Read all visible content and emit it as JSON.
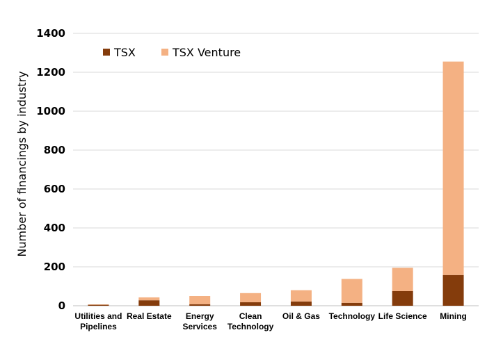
{
  "chart_data": {
    "type": "bar",
    "stacked": true,
    "title": "",
    "xlabel": "",
    "ylabel": "Number of financings by industry",
    "ylim": [
      0,
      1400
    ],
    "yticks": [
      0,
      200,
      400,
      600,
      800,
      1000,
      1200,
      1400
    ],
    "grid": true,
    "legend_position": "top-left",
    "categories": [
      [
        "Utilities and",
        "Pipelines"
      ],
      [
        "Real Estate"
      ],
      [
        "Energy",
        "Services"
      ],
      [
        "Clean",
        "Technology"
      ],
      [
        "Oil & Gas"
      ],
      [
        "Technology"
      ],
      [
        "Life Science"
      ],
      [
        "Mining"
      ]
    ],
    "series": [
      {
        "name": "TSX",
        "color": "#843c0c",
        "values": [
          5,
          28,
          8,
          18,
          22,
          15,
          75,
          158
        ]
      },
      {
        "name": "TSX Venture",
        "color": "#f4b183",
        "values": [
          2,
          15,
          42,
          47,
          58,
          123,
          120,
          1097
        ]
      }
    ]
  }
}
